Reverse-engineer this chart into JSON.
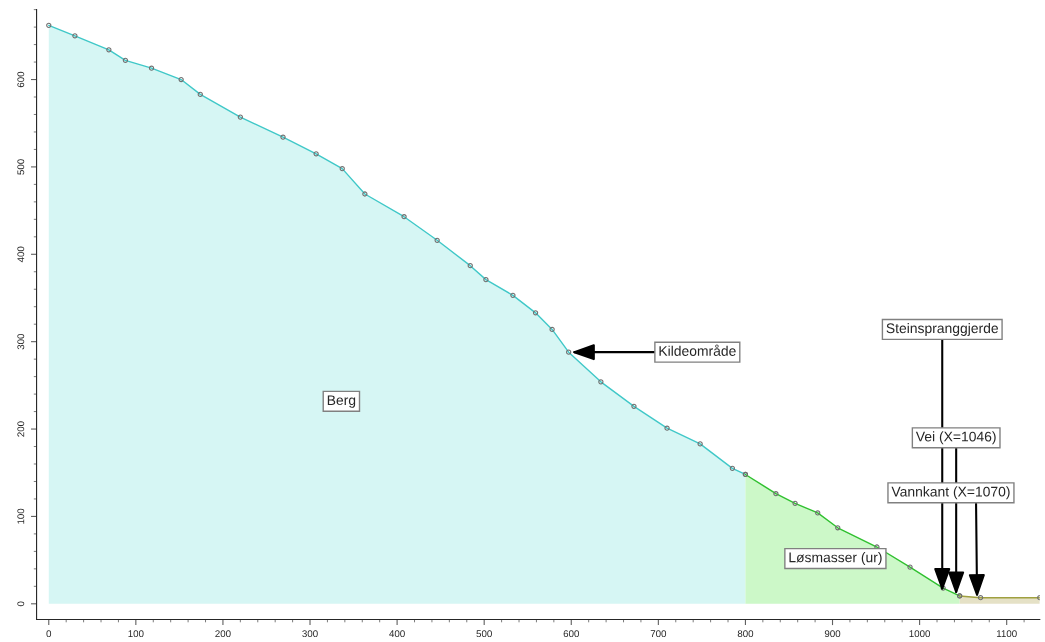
{
  "chart_data": {
    "type": "area",
    "series": [
      {
        "name": "Berg",
        "color": "#d6f6f4",
        "x": [
          0,
          30,
          69,
          88,
          118,
          152,
          174,
          220,
          269,
          307,
          337,
          363,
          408,
          446,
          484,
          502,
          533,
          559,
          578,
          597,
          634,
          672,
          710,
          748,
          785,
          800
        ],
        "values": [
          662,
          650,
          634,
          622,
          613,
          600,
          583,
          557,
          534,
          515,
          498,
          469,
          443,
          416,
          387,
          371,
          353,
          333,
          314,
          288,
          254,
          226,
          201,
          183,
          155,
          148
        ]
      },
      {
        "name": "Løsmasser (ur)",
        "color": "#ccf8c8",
        "x": [
          800,
          835,
          857,
          883,
          906,
          951,
          989,
          1027,
          1046
        ],
        "values": [
          148,
          126,
          115,
          104,
          87,
          65,
          42,
          18,
          9
        ]
      },
      {
        "color": "#e5e1c6",
        "x": [
          1046,
          1070,
          1138
        ],
        "values": [
          9,
          7,
          7
        ]
      }
    ],
    "xlim": [
      -14,
      1138
    ],
    "ylim": [
      -18,
      680
    ],
    "xticks": [
      0,
      100,
      200,
      300,
      400,
      500,
      600,
      700,
      800,
      900,
      1000,
      1100
    ],
    "yticks": [
      0,
      100,
      200,
      300,
      400,
      500,
      600
    ],
    "marker": "circle",
    "grid": false,
    "legend": false,
    "annotations": [
      {
        "text": "Kildeområde",
        "x": 600,
        "y": 288
      },
      {
        "text": "Steinspranggjerde",
        "x": 1026,
        "y": 14
      },
      {
        "text": "Vei (X=1046)",
        "x": 1042,
        "y": 10
      },
      {
        "text": "Vannkant (X=1070)",
        "x": 1066,
        "y": 7
      }
    ]
  }
}
